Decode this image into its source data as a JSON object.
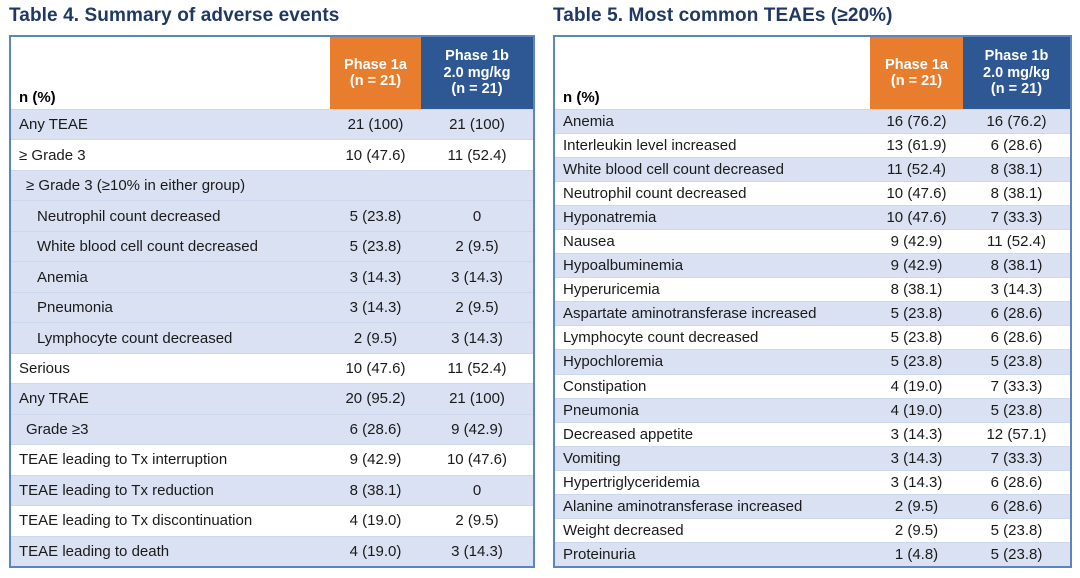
{
  "colors": {
    "title_navy": "#1F3864",
    "phase1a_orange": "#E87D2D",
    "phase1b_blue": "#2E5894",
    "row_light_blue": "#D9E1F2",
    "table_border_blue": "#5B84C0"
  },
  "tables": [
    {
      "title": "Table 4. Summary of adverse events",
      "header": {
        "label": "n (%)",
        "col_a": "Phase 1a\n(n = 21)",
        "col_b": "Phase 1b\n2.0 mg/kg\n(n = 21)"
      },
      "rows": [
        {
          "label": "Any TEAE",
          "a": "21 (100)",
          "b": "21 (100)",
          "indent": 0,
          "bg": "blue"
        },
        {
          "label": "≥ Grade 3",
          "a": "10 (47.6)",
          "b": "11 (52.4)",
          "indent": 0,
          "bg": "white"
        },
        {
          "label": "≥ Grade 3 (≥10% in either group)",
          "a": "",
          "b": "",
          "indent": 1,
          "bg": "blue"
        },
        {
          "label": "Neutrophil count decreased",
          "a": "5 (23.8)",
          "b": "0",
          "indent": 2,
          "bg": "blue"
        },
        {
          "label": "White blood cell count decreased",
          "a": "5 (23.8)",
          "b": "2 (9.5)",
          "indent": 2,
          "bg": "blue"
        },
        {
          "label": "Anemia",
          "a": "3 (14.3)",
          "b": "3 (14.3)",
          "indent": 2,
          "bg": "blue"
        },
        {
          "label": "Pneumonia",
          "a": "3 (14.3)",
          "b": "2 (9.5)",
          "indent": 2,
          "bg": "blue"
        },
        {
          "label": "Lymphocyte count decreased",
          "a": "2 (9.5)",
          "b": "3 (14.3)",
          "indent": 2,
          "bg": "blue"
        },
        {
          "label": "Serious",
          "a": "10 (47.6)",
          "b": "11 (52.4)",
          "indent": 0,
          "bg": "white"
        },
        {
          "label": "Any TRAE",
          "a": "20 (95.2)",
          "b": "21 (100)",
          "indent": 0,
          "bg": "blue"
        },
        {
          "label": "Grade ≥3",
          "a": "6 (28.6)",
          "b": "9 (42.9)",
          "indent": 1,
          "bg": "blue"
        },
        {
          "label": "TEAE leading to Tx interruption",
          "a": "9 (42.9)",
          "b": "10 (47.6)",
          "indent": 0,
          "bg": "white"
        },
        {
          "label": "TEAE leading to Tx reduction",
          "a": "8 (38.1)",
          "b": "0",
          "indent": 0,
          "bg": "blue"
        },
        {
          "label": "TEAE leading to Tx discontinuation",
          "a": "4 (19.0)",
          "b": "2 (9.5)",
          "indent": 0,
          "bg": "white"
        },
        {
          "label": "TEAE leading to death",
          "a": "4 (19.0)",
          "b": "3 (14.3)",
          "indent": 0,
          "bg": "blue"
        }
      ]
    },
    {
      "title": "Table 5. Most common TEAEs (≥20%)",
      "header": {
        "label": "n (%)",
        "col_a": "Phase 1a\n(n = 21)",
        "col_b": "Phase 1b\n2.0 mg/kg\n(n = 21)"
      },
      "rows": [
        {
          "label": "Anemia",
          "a": "16 (76.2)",
          "b": "16 (76.2)",
          "indent": 0,
          "bg": "blue"
        },
        {
          "label": "Interleukin level increased",
          "a": "13 (61.9)",
          "b": "6 (28.6)",
          "indent": 0,
          "bg": "white"
        },
        {
          "label": "White blood cell count decreased",
          "a": "11 (52.4)",
          "b": "8 (38.1)",
          "indent": 0,
          "bg": "blue"
        },
        {
          "label": "Neutrophil count decreased",
          "a": "10 (47.6)",
          "b": "8 (38.1)",
          "indent": 0,
          "bg": "white"
        },
        {
          "label": "Hyponatremia",
          "a": "10 (47.6)",
          "b": "7 (33.3)",
          "indent": 0,
          "bg": "blue"
        },
        {
          "label": "Nausea",
          "a": "9 (42.9)",
          "b": "11 (52.4)",
          "indent": 0,
          "bg": "white"
        },
        {
          "label": "Hypoalbuminemia",
          "a": "9 (42.9)",
          "b": "8 (38.1)",
          "indent": 0,
          "bg": "blue"
        },
        {
          "label": "Hyperuricemia",
          "a": "8 (38.1)",
          "b": "3 (14.3)",
          "indent": 0,
          "bg": "white"
        },
        {
          "label": "Aspartate aminotransferase increased",
          "a": "5 (23.8)",
          "b": "6 (28.6)",
          "indent": 0,
          "bg": "blue"
        },
        {
          "label": "Lymphocyte count decreased",
          "a": "5 (23.8)",
          "b": "6 (28.6)",
          "indent": 0,
          "bg": "white"
        },
        {
          "label": "Hypochloremia",
          "a": "5 (23.8)",
          "b": "5 (23.8)",
          "indent": 0,
          "bg": "blue"
        },
        {
          "label": "Constipation",
          "a": "4 (19.0)",
          "b": "7 (33.3)",
          "indent": 0,
          "bg": "white"
        },
        {
          "label": "Pneumonia",
          "a": "4 (19.0)",
          "b": "5 (23.8)",
          "indent": 0,
          "bg": "blue"
        },
        {
          "label": "Decreased appetite",
          "a": "3 (14.3)",
          "b": "12 (57.1)",
          "indent": 0,
          "bg": "white"
        },
        {
          "label": "Vomiting",
          "a": "3 (14.3)",
          "b": "7 (33.3)",
          "indent": 0,
          "bg": "blue"
        },
        {
          "label": "Hypertriglyceridemia",
          "a": "3 (14.3)",
          "b": "6 (28.6)",
          "indent": 0,
          "bg": "white"
        },
        {
          "label": "Alanine aminotransferase increased",
          "a": "2 (9.5)",
          "b": "6 (28.6)",
          "indent": 0,
          "bg": "blue"
        },
        {
          "label": "Weight decreased",
          "a": "2 (9.5)",
          "b": "5 (23.8)",
          "indent": 0,
          "bg": "white"
        },
        {
          "label": "Proteinuria",
          "a": "1 (4.8)",
          "b": "5 (23.8)",
          "indent": 0,
          "bg": "blue"
        }
      ]
    }
  ]
}
